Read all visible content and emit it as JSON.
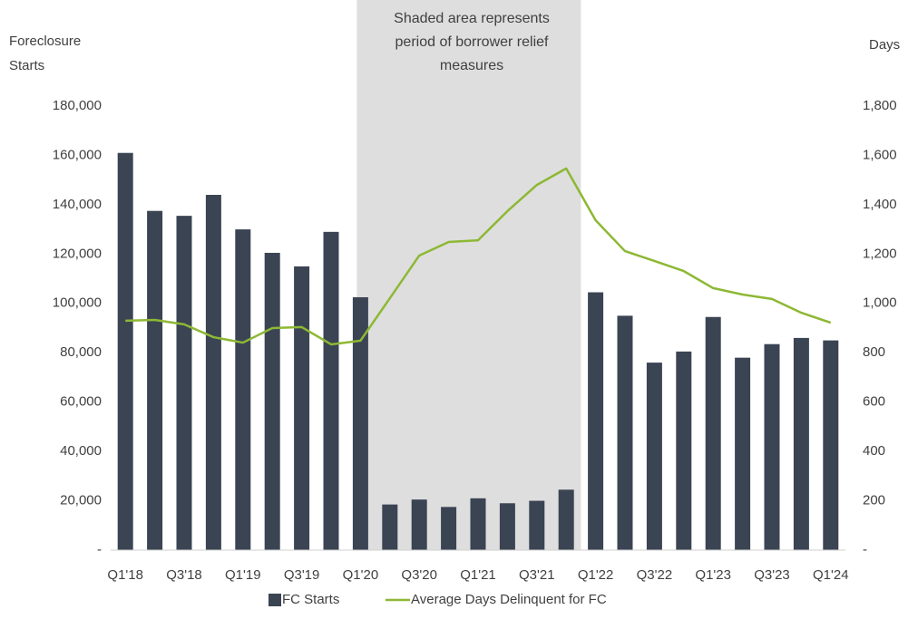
{
  "chart_data": {
    "type": "bar_line",
    "y_axis_label": [
      "Foreclosure",
      "Starts"
    ],
    "y2_axis_label": "Days",
    "annotation": [
      "Shaded area represents",
      "period of borrower relief",
      "measures"
    ],
    "shaded_categories": [
      8,
      15
    ],
    "categories": [
      "Q1'18",
      null,
      "Q3'18",
      null,
      "Q1'19",
      null,
      "Q3'19",
      null,
      "Q1'20",
      null,
      "Q3'20",
      null,
      "Q1'21",
      null,
      "Q3'21",
      null,
      "Q1'22",
      null,
      "Q3'22",
      null,
      "Q1'23",
      null,
      "Q3'23",
      null,
      "Q1'24"
    ],
    "series": [
      {
        "name": "FC Starts",
        "type": "bar",
        "color": "#3b4453",
        "values": [
          161000,
          137500,
          135500,
          144000,
          130000,
          120500,
          115000,
          129000,
          102500,
          18500,
          20500,
          17500,
          21000,
          19000,
          20000,
          24500,
          104500,
          95000,
          76000,
          80500,
          94500,
          78000,
          83500,
          86000,
          85000
        ]
      },
      {
        "name": "Average Days Delinquent for FC",
        "type": "line",
        "axis": "y2",
        "color": "#8db834",
        "values": [
          930,
          933,
          915,
          863,
          841,
          900,
          904,
          834,
          849,
          1021,
          1194,
          1249,
          1256,
          1374,
          1480,
          1547,
          1337,
          1212,
          1172,
          1131,
          1062,
          1036,
          1018,
          962,
          922
        ]
      }
    ],
    "ylim": [
      0,
      180000
    ],
    "yticks": [
      {
        "value": 0,
        "label": "-"
      },
      {
        "value": 20000,
        "label": "20,000"
      },
      {
        "value": 40000,
        "label": "40,000"
      },
      {
        "value": 60000,
        "label": "60,000"
      },
      {
        "value": 80000,
        "label": "80,000"
      },
      {
        "value": 100000,
        "label": "100,000"
      },
      {
        "value": 120000,
        "label": "120,000"
      },
      {
        "value": 140000,
        "label": "140,000"
      },
      {
        "value": 160000,
        "label": "160,000"
      },
      {
        "value": 180000,
        "label": "180,000"
      }
    ],
    "y2lim": [
      0,
      1800
    ],
    "y2ticks": [
      {
        "value": 0,
        "label": "-"
      },
      200,
      400,
      600,
      800,
      {
        "value": 1000,
        "label": "1,000"
      },
      {
        "value": 1200,
        "label": "1,200"
      },
      {
        "value": 1400,
        "label": "1,400"
      },
      {
        "value": 1600,
        "label": "1,600"
      },
      {
        "value": 1800,
        "label": "1,800"
      }
    ],
    "legend": "bottom"
  }
}
